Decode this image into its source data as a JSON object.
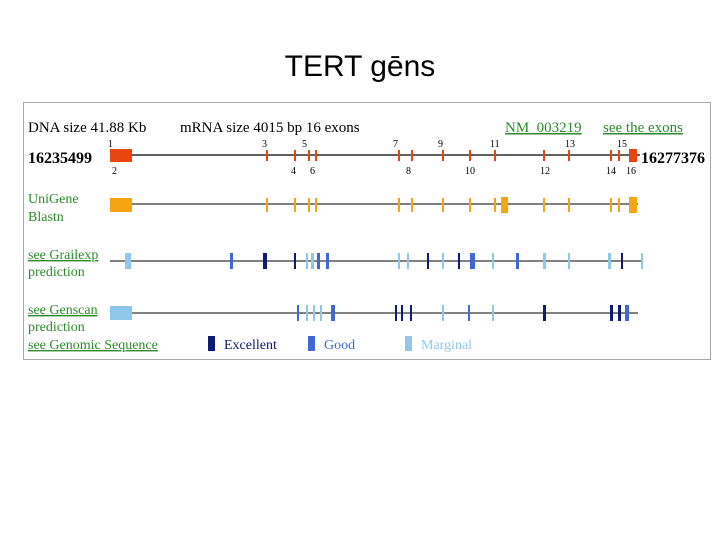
{
  "slide": {
    "title": "TERT gēns"
  },
  "header": {
    "dna_size": "DNA size   41.88 Kb",
    "mrna_size": "mRNA size 4015 bp   16 exons",
    "accession": "NM_003219",
    "exons_link": "see the exons"
  },
  "coordinates": {
    "start": "16235499",
    "end": "16277376"
  },
  "exon_numbers_top": [
    "1",
    "3",
    "5",
    "7",
    "9",
    "11",
    "13",
    "15"
  ],
  "exon_numbers_bottom": [
    "2",
    "4",
    "6",
    "8",
    "10",
    "12",
    "14",
    "16"
  ],
  "tracks": {
    "unigene": {
      "line1": "UniGene",
      "line2": "Blastn"
    },
    "grailexp": {
      "line1": "see Grailexp",
      "line2": "prediction"
    },
    "genscan": {
      "line1": "see Genscan",
      "line2": "prediction"
    },
    "genomic": "see Genomic Sequence"
  },
  "legend": {
    "excellent": "Excellent",
    "good": "Good",
    "marginal": "Marginal"
  },
  "colors": {
    "exon_red": "#e8450f",
    "unigene_orange": "#f5a512",
    "excellent": "#0e1a78",
    "good": "#3f67d6",
    "marginal": "#8fc7ea",
    "link_green": "#2d8a2d"
  }
}
